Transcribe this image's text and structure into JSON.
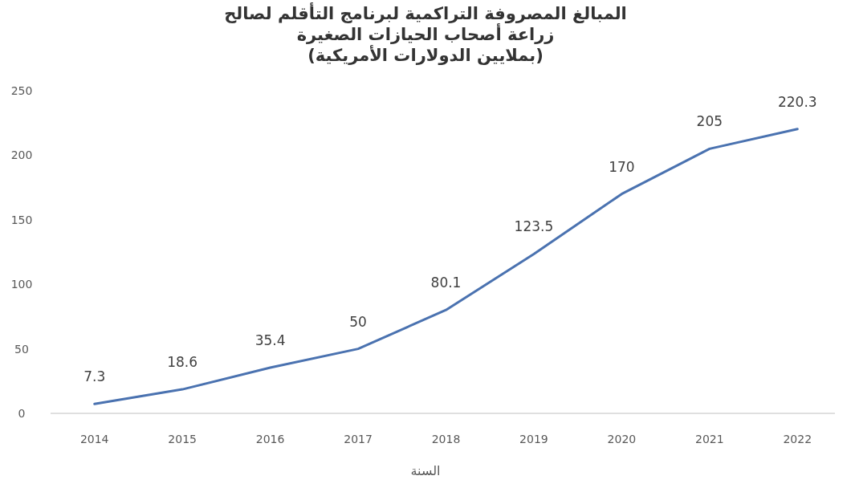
{
  "chart_data": {
    "type": "line",
    "title": "المبالغ المصروفة التراكمية لبرنامج التأقلم لصالح\nزراعة أصحاب الحيازات الصغيرة\n(بملايين الدولارات الأمريكية)",
    "xlabel": "السنة",
    "categories": [
      "2014",
      "2015",
      "2016",
      "2017",
      "2018",
      "2019",
      "2020",
      "2021",
      "2022"
    ],
    "series": [
      {
        "color": "#4a72b0",
        "values": [
          7.3,
          18.6,
          35.4,
          50,
          80.1,
          123.5,
          170,
          205,
          220.3
        ]
      }
    ],
    "ylim": [
      0,
      250
    ],
    "yticks": [
      0,
      50,
      100,
      150,
      200,
      250
    ],
    "grid": false,
    "marker": "none",
    "line_style": "solid",
    "data_labels": true
  }
}
